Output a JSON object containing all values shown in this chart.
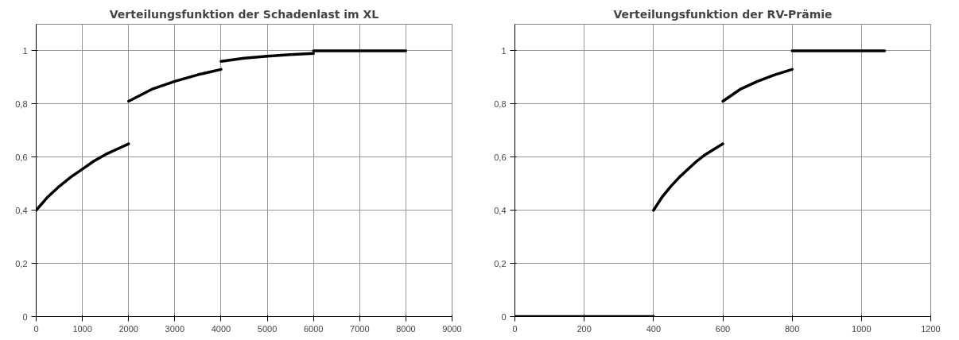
{
  "chart_data": [
    {
      "type": "line",
      "title": "Verteilungsfunktion der Schadenlast im XL",
      "xlim": [
        0,
        9000
      ],
      "xticks": [
        0,
        1000,
        2000,
        3000,
        4000,
        5000,
        6000,
        7000,
        8000,
        9000
      ],
      "ylim": [
        0,
        1.1
      ],
      "yticks": [
        0,
        {
          "value": 0.2,
          "label": "0,2"
        },
        {
          "value": 0.4,
          "label": "0,4"
        },
        {
          "value": 0.6,
          "label": "0,6"
        },
        {
          "value": 0.8,
          "label": "0,8"
        },
        1
      ],
      "grid": true,
      "line_style": "solid",
      "series": [
        {
          "color": "#000000",
          "x": [
            0,
            250,
            500,
            750,
            1000,
            1250,
            1500,
            1750,
            2000
          ],
          "values": [
            0.4,
            0.45,
            0.49,
            0.525,
            0.555,
            0.585,
            0.61,
            0.63,
            0.65
          ]
        },
        {
          "color": "#000000",
          "x": [
            2000,
            2500,
            3000,
            3500,
            4000
          ],
          "values": [
            0.81,
            0.855,
            0.885,
            0.91,
            0.93
          ]
        },
        {
          "color": "#000000",
          "x": [
            4000,
            4500,
            5000,
            5500,
            6000
          ],
          "values": [
            0.96,
            0.972,
            0.98,
            0.986,
            0.99
          ]
        },
        {
          "color": "#000000",
          "x": [
            6000,
            8000
          ],
          "values": [
            1,
            1
          ]
        }
      ]
    },
    {
      "type": "line",
      "title": "Verteilungsfunktion der RV-Prämie",
      "xlim": [
        0,
        1200
      ],
      "xticks": [
        0,
        200,
        400,
        600,
        800,
        1000,
        1200
      ],
      "ylim": [
        0,
        1.1
      ],
      "yticks": [
        0,
        {
          "value": 0.2,
          "label": "0,2"
        },
        {
          "value": 0.4,
          "label": "0,4"
        },
        {
          "value": 0.6,
          "label": "0,6"
        },
        {
          "value": 0.8,
          "label": "0,8"
        },
        1
      ],
      "grid": true,
      "line_style": "solid",
      "series": [
        {
          "color": "#000000",
          "x": [
            0,
            400
          ],
          "values": [
            0,
            0
          ]
        },
        {
          "color": "#000000",
          "x": [
            400,
            425,
            450,
            475,
            500,
            525,
            550,
            575,
            600
          ],
          "values": [
            0.4,
            0.45,
            0.49,
            0.525,
            0.555,
            0.585,
            0.61,
            0.63,
            0.65
          ]
        },
        {
          "color": "#000000",
          "x": [
            600,
            650,
            700,
            750,
            800
          ],
          "values": [
            0.81,
            0.855,
            0.885,
            0.91,
            0.93
          ]
        },
        {
          "color": "#000000",
          "x": [
            800,
            1067
          ],
          "values": [
            1,
            1
          ]
        }
      ]
    }
  ]
}
